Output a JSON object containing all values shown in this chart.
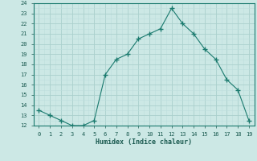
{
  "x": [
    0,
    1,
    2,
    3,
    4,
    5,
    6,
    7,
    8,
    9,
    10,
    11,
    12,
    13,
    14,
    15,
    16,
    17,
    18,
    19
  ],
  "y": [
    13.5,
    13.0,
    12.5,
    12.0,
    12.0,
    12.5,
    17.0,
    18.5,
    19.0,
    20.5,
    21.0,
    21.5,
    23.5,
    22.0,
    21.0,
    19.5,
    18.5,
    16.5,
    15.5,
    12.5
  ],
  "xlabel": "Humidex (Indice chaleur)",
  "ylim": [
    12,
    24
  ],
  "xlim": [
    -0.5,
    19.5
  ],
  "yticks": [
    12,
    13,
    14,
    15,
    16,
    17,
    18,
    19,
    20,
    21,
    22,
    23,
    24
  ],
  "xticks": [
    0,
    1,
    2,
    3,
    4,
    5,
    6,
    7,
    8,
    9,
    10,
    11,
    12,
    13,
    14,
    15,
    16,
    17,
    18,
    19
  ],
  "line_color": "#1a7a6e",
  "marker_color": "#1a7a6e",
  "bg_color": "#cce8e5",
  "grid_major_color": "#aad0cc",
  "grid_minor_color": "#bcdedd",
  "font_color": "#1a5a50",
  "spine_color": "#1a7a6e"
}
